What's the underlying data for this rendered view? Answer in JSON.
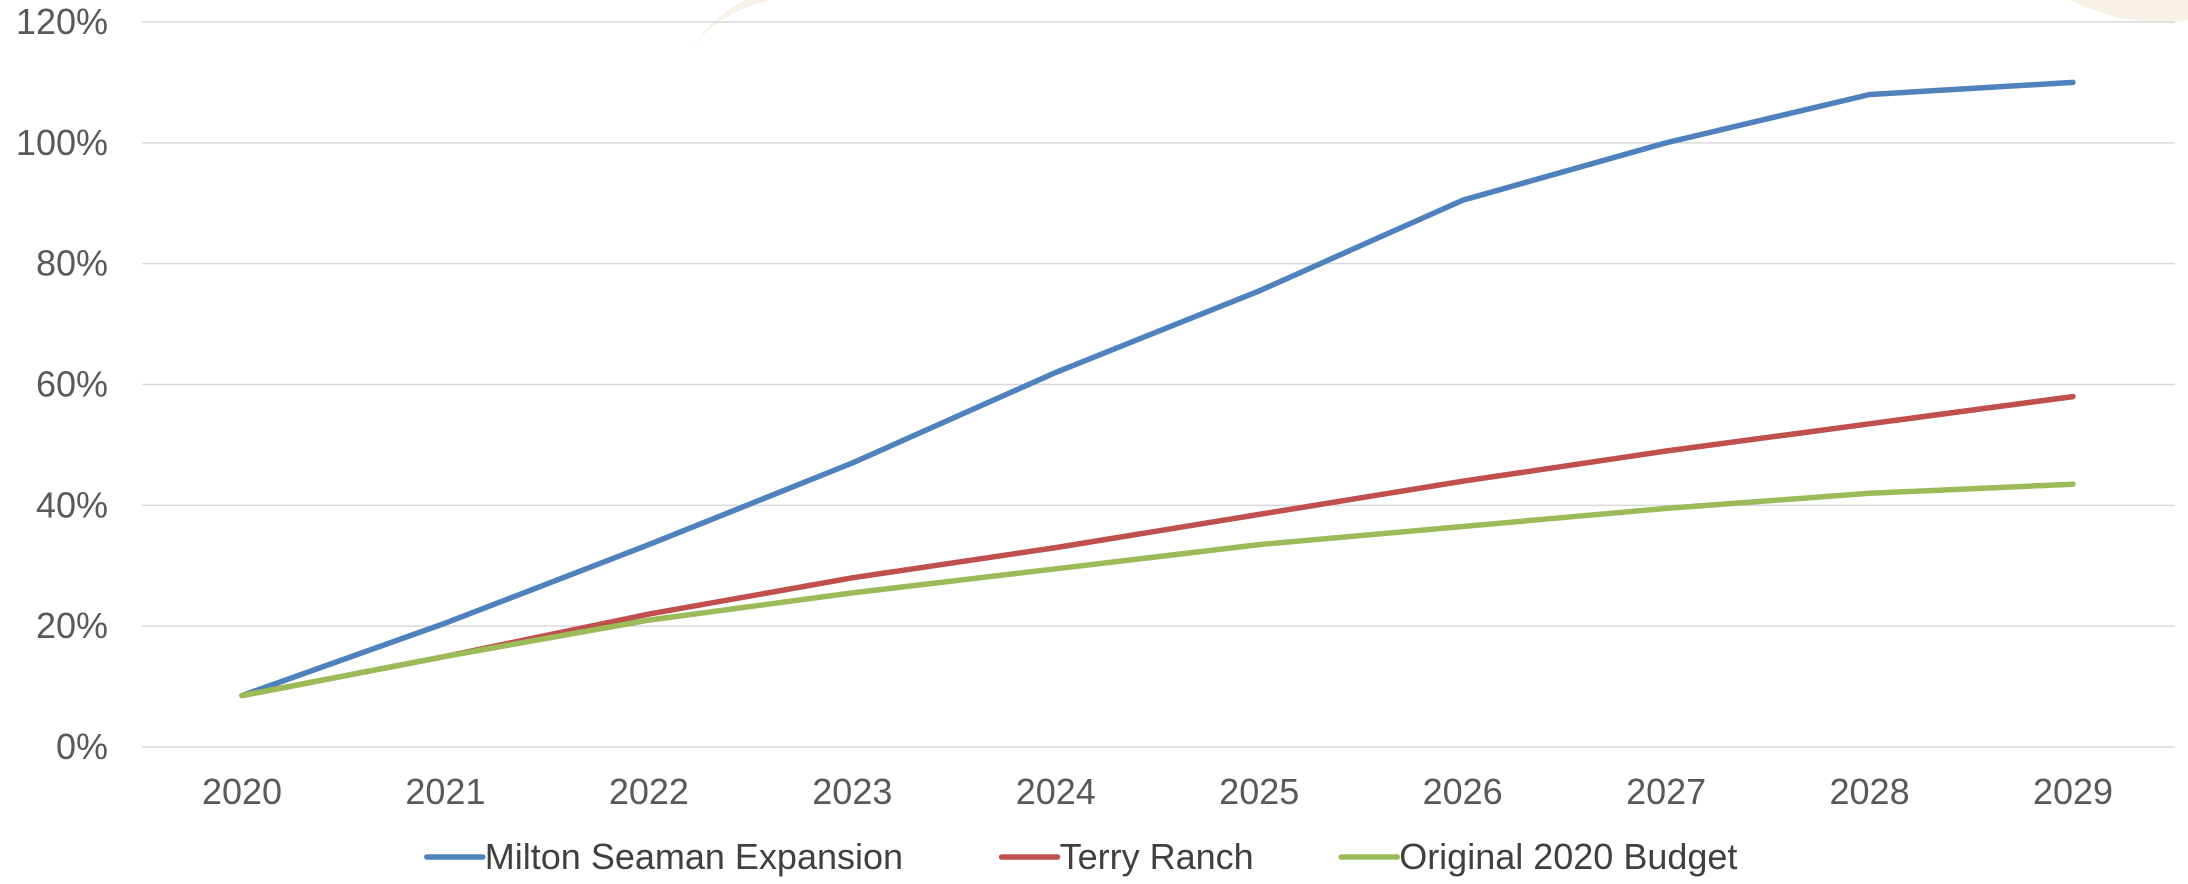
{
  "chart_data": {
    "type": "line",
    "title": "",
    "xlabel": "",
    "ylabel": "",
    "categories": [
      "2020",
      "2021",
      "2022",
      "2023",
      "2024",
      "2025",
      "2026",
      "2027",
      "2028",
      "2029"
    ],
    "ylim": [
      0,
      120
    ],
    "yticks": [
      0,
      20,
      40,
      60,
      80,
      100,
      120
    ],
    "ytick_labels": [
      "0%",
      "20%",
      "40%",
      "60%",
      "80%",
      "100%",
      "120%"
    ],
    "grid": true,
    "legend_position": "bottom",
    "series": [
      {
        "name": "Milton Seaman Expansion",
        "color": "#4F81BD",
        "values": [
          8.5,
          20.5,
          33.5,
          47,
          62,
          75.5,
          90.5,
          100,
          108,
          110
        ]
      },
      {
        "name": "Terry Ranch",
        "color": "#C0504D",
        "values": [
          8.5,
          15,
          22,
          28,
          33,
          38.5,
          44,
          49,
          53.5,
          58
        ]
      },
      {
        "name": "Original 2020 Budget",
        "color": "#9BBB59",
        "values": [
          8.5,
          15,
          21,
          25.5,
          29.5,
          33.5,
          36.5,
          39.5,
          42,
          43.5
        ]
      }
    ]
  }
}
